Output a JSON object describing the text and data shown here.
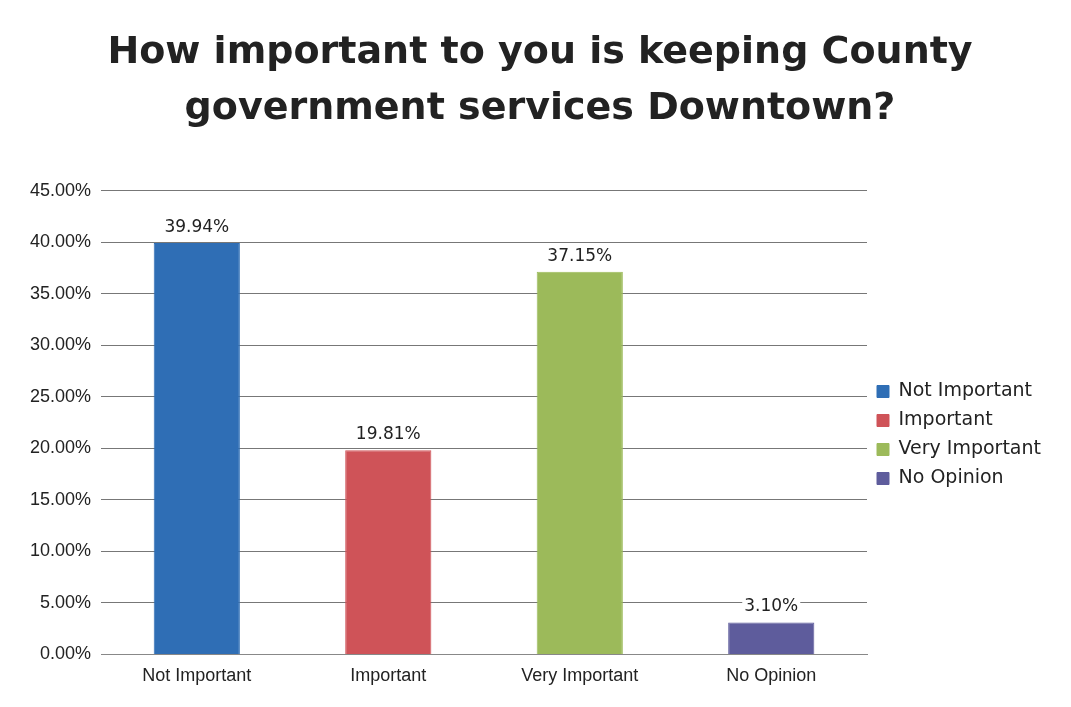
{
  "chart_data": {
    "type": "bar",
    "title": "How important to you is keeping County government services Downtown?",
    "categories": [
      "Not Important",
      "Important",
      "Very Important",
      "No Opinion"
    ],
    "series": [
      {
        "name": "Not Important",
        "color": "#2f6eb5",
        "values": [
          39.94,
          null,
          null,
          null
        ],
        "value_labels": [
          "39.94%",
          null,
          null,
          null
        ]
      },
      {
        "name": "Important",
        "color": "#cf5358",
        "values": [
          null,
          19.81,
          null,
          null
        ],
        "value_labels": [
          null,
          "19.81%",
          null,
          null
        ]
      },
      {
        "name": "Very Important",
        "color": "#9cba5a",
        "values": [
          null,
          null,
          37.15,
          null
        ],
        "value_labels": [
          null,
          null,
          "37.15%",
          null
        ]
      },
      {
        "name": "No Opinion",
        "color": "#5e5c9c",
        "values": [
          null,
          null,
          null,
          3.1
        ],
        "value_labels": [
          null,
          null,
          null,
          "3.10%"
        ]
      }
    ],
    "ylim": [
      0,
      45
    ],
    "yticks": [
      {
        "value": 0,
        "label": "0.00%"
      },
      {
        "value": 5,
        "label": "5.00%"
      },
      {
        "value": 10,
        "label": "10.00%"
      },
      {
        "value": 15,
        "label": "15.00%"
      },
      {
        "value": 20,
        "label": "20.00%"
      },
      {
        "value": 25,
        "label": "25.00%"
      },
      {
        "value": 30,
        "label": "30.00%"
      },
      {
        "value": 35,
        "label": "35.00%"
      },
      {
        "value": 40,
        "label": "40.00%"
      },
      {
        "value": 45,
        "label": "45.00%"
      }
    ],
    "grid": "y",
    "legend": "right"
  }
}
